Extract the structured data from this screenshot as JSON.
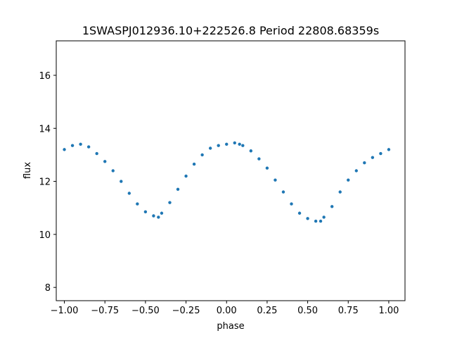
{
  "chart_data": {
    "type": "scatter",
    "title": "1SWASPJ012936.10+222526.8 Period 22808.68359s",
    "xlabel": "phase",
    "ylabel": "flux",
    "xlim": [
      -1.05,
      1.1
    ],
    "ylim": [
      7.5,
      17.3
    ],
    "x_ticks": [
      -1.0,
      -0.75,
      -0.5,
      -0.25,
      0.0,
      0.25,
      0.5,
      0.75,
      1.0
    ],
    "x_tick_labels": [
      "−1.00",
      "−0.75",
      "−0.50",
      "−0.25",
      "0.00",
      "0.25",
      "0.50",
      "0.75",
      "1.00"
    ],
    "y_ticks": [
      8,
      10,
      12,
      14,
      16
    ],
    "y_tick_labels": [
      "8",
      "10",
      "12",
      "14",
      "16"
    ],
    "grid": false,
    "legend": "none",
    "marker_color": "#1f77b4",
    "series": [
      {
        "x": [
          -1.0,
          -0.95,
          -0.9,
          -0.85,
          -0.8,
          -0.75,
          -0.7,
          -0.65,
          -0.6,
          -0.55,
          -0.5,
          -0.45,
          -0.42,
          -0.4,
          -0.35,
          -0.3,
          -0.25,
          -0.2,
          -0.15,
          -0.1,
          -0.05,
          0.0,
          0.05,
          0.08,
          0.1,
          0.15,
          0.2,
          0.25,
          0.3,
          0.35,
          0.4,
          0.45,
          0.5,
          0.55,
          0.58,
          0.6,
          0.65,
          0.7,
          0.75,
          0.8,
          0.85,
          0.9,
          0.95,
          1.0
        ],
        "y": [
          13.2,
          13.35,
          13.4,
          13.3,
          13.05,
          12.75,
          12.4,
          12.0,
          11.55,
          11.15,
          10.85,
          10.7,
          10.65,
          10.8,
          11.2,
          11.7,
          12.2,
          12.65,
          13.0,
          13.25,
          13.35,
          13.4,
          13.45,
          13.4,
          13.35,
          13.15,
          12.85,
          12.5,
          12.05,
          11.6,
          11.15,
          10.8,
          10.6,
          10.5,
          10.5,
          10.65,
          11.05,
          11.6,
          12.05,
          12.4,
          12.7,
          12.9,
          13.05,
          13.2
        ]
      }
    ]
  }
}
